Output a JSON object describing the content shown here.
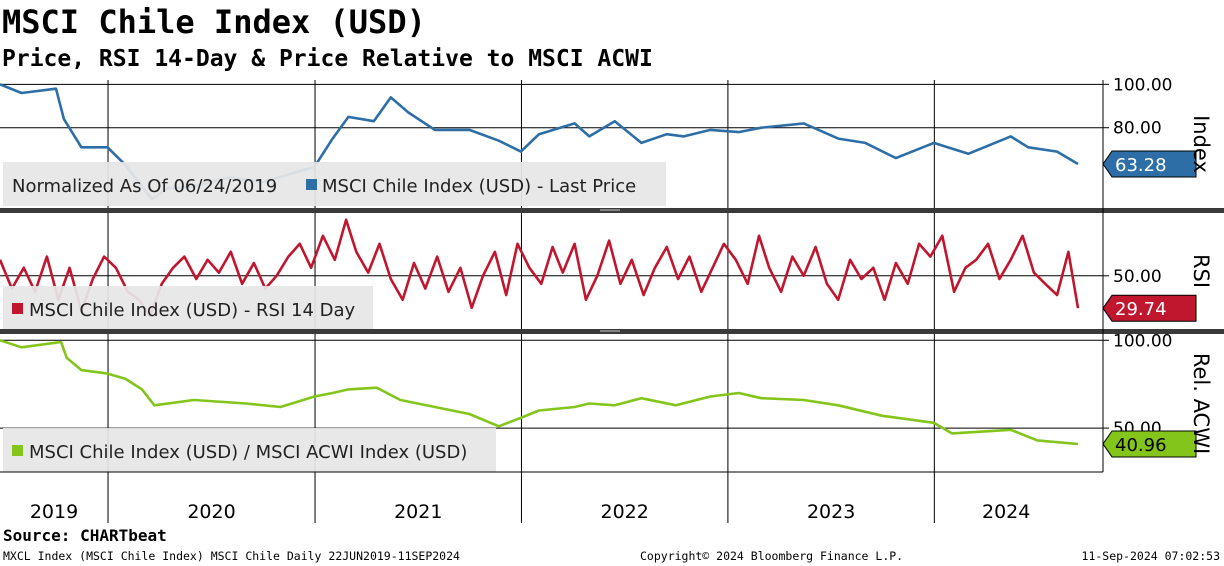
{
  "title": "MSCI Chile Index (USD)",
  "subtitle": "Price, RSI 14-Day & Price Relative to MSCI ACWI",
  "source": "Source: CHARTbeat",
  "footer": {
    "left": "MXCL Index (MSCI Chile Index) MSCI Chile  Daily 22JUN2019-11SEP2024",
    "center": "Copyright© 2024 Bloomberg Finance L.P.",
    "right": "11-Sep-2024 07:02:53"
  },
  "chart_data": [
    {
      "type": "line",
      "panel": "price",
      "axis_title": "Index",
      "ylabel_ticks": [
        "100.00",
        "80.00"
      ],
      "ylim": [
        43,
        102
      ],
      "legend": [
        "Normalized As Of 06/24/2019",
        "MSCI Chile Index (USD) - Last Price"
      ],
      "last_value_label": "63.28",
      "color": "#2e6ea6",
      "x": [
        "2019-06-24",
        "2019-08-01",
        "2019-10-01",
        "2019-10-15",
        "2019-11-15",
        "2019-12-31",
        "2020-01-31",
        "2020-03-19",
        "2020-04-15",
        "2020-06-01",
        "2020-08-01",
        "2020-10-01",
        "2020-12-31",
        "2021-02-01",
        "2021-03-01",
        "2021-04-15",
        "2021-05-15",
        "2021-06-15",
        "2021-08-01",
        "2021-10-01",
        "2021-11-22",
        "2021-12-31",
        "2022-02-01",
        "2022-04-05",
        "2022-05-01",
        "2022-06-15",
        "2022-08-01",
        "2022-09-15",
        "2022-10-15",
        "2022-12-01",
        "2023-01-20",
        "2023-03-01",
        "2023-05-15",
        "2023-07-15",
        "2023-09-01",
        "2023-10-25",
        "2023-12-31",
        "2024-03-01",
        "2024-05-15",
        "2024-06-15",
        "2024-08-05",
        "2024-09-11"
      ],
      "y": [
        100,
        96,
        98,
        84,
        71,
        71,
        63,
        47,
        52,
        53,
        57,
        55,
        62,
        75,
        85,
        83,
        94,
        87,
        79,
        79,
        74,
        69,
        77,
        82,
        76,
        83,
        73,
        77,
        76,
        79,
        78,
        80,
        82,
        75,
        73,
        66,
        73,
        68,
        76,
        71,
        69,
        63.28
      ]
    },
    {
      "type": "line",
      "panel": "rsi",
      "axis_title": "RSI",
      "ylabel_ticks": [
        "50.00"
      ],
      "ylim": [
        18,
        88
      ],
      "legend": [
        "MSCI Chile Index (USD) - RSI 14 Day"
      ],
      "last_value_label": "29.74",
      "color": "#c0172f",
      "x": [
        "2019-06-24",
        "2019-07-15",
        "2019-08-05",
        "2019-08-25",
        "2019-09-15",
        "2019-10-05",
        "2019-10-25",
        "2019-11-15",
        "2019-12-05",
        "2019-12-25",
        "2020-01-15",
        "2020-02-05",
        "2020-02-25",
        "2020-03-15",
        "2020-04-05",
        "2020-04-25",
        "2020-05-15",
        "2020-06-05",
        "2020-06-25",
        "2020-07-15",
        "2020-08-05",
        "2020-08-25",
        "2020-09-15",
        "2020-10-05",
        "2020-10-25",
        "2020-11-15",
        "2020-12-05",
        "2020-12-25",
        "2021-01-15",
        "2021-02-05",
        "2021-02-25",
        "2021-03-15",
        "2021-04-05",
        "2021-04-25",
        "2021-05-15",
        "2021-06-05",
        "2021-06-25",
        "2021-07-15",
        "2021-08-05",
        "2021-08-25",
        "2021-09-15",
        "2021-10-05",
        "2021-10-25",
        "2021-11-15",
        "2021-12-05",
        "2021-12-25",
        "2022-01-15",
        "2022-02-05",
        "2022-02-25",
        "2022-03-15",
        "2022-04-05",
        "2022-04-25",
        "2022-05-15",
        "2022-06-05",
        "2022-06-25",
        "2022-07-15",
        "2022-08-05",
        "2022-08-25",
        "2022-09-15",
        "2022-10-05",
        "2022-10-25",
        "2022-11-15",
        "2022-12-05",
        "2022-12-25",
        "2023-01-15",
        "2023-02-05",
        "2023-02-25",
        "2023-03-15",
        "2023-04-05",
        "2023-04-25",
        "2023-05-15",
        "2023-06-05",
        "2023-06-25",
        "2023-07-15",
        "2023-08-05",
        "2023-08-25",
        "2023-09-15",
        "2023-10-05",
        "2023-10-25",
        "2023-11-15",
        "2023-12-05",
        "2023-12-25",
        "2024-01-15",
        "2024-02-05",
        "2024-02-25",
        "2024-03-15",
        "2024-04-05",
        "2024-04-25",
        "2024-05-15",
        "2024-06-05",
        "2024-06-25",
        "2024-07-15",
        "2024-08-05",
        "2024-08-25",
        "2024-09-11"
      ],
      "y": [
        60,
        42,
        55,
        40,
        62,
        35,
        55,
        28,
        48,
        62,
        55,
        40,
        35,
        25,
        45,
        55,
        62,
        48,
        60,
        52,
        65,
        45,
        58,
        42,
        50,
        62,
        70,
        55,
        75,
        60,
        85,
        65,
        52,
        70,
        48,
        35,
        58,
        42,
        62,
        40,
        55,
        30,
        50,
        65,
        38,
        70,
        55,
        45,
        68,
        52,
        70,
        35,
        50,
        72,
        45,
        60,
        38,
        55,
        68,
        48,
        62,
        40,
        55,
        70,
        60,
        45,
        75,
        55,
        40,
        62,
        50,
        68,
        45,
        35,
        60,
        48,
        55,
        35,
        58,
        45,
        70,
        62,
        75,
        40,
        55,
        60,
        70,
        48,
        60,
        75,
        52,
        45,
        38,
        65,
        29.74
      ]
    },
    {
      "type": "line",
      "panel": "relative",
      "axis_title": "Rel. ACWI",
      "ylabel_ticks": [
        "100.00",
        "50.00"
      ],
      "ylim": [
        25,
        103
      ],
      "legend": [
        "MSCI Chile Index (USD) / MSCI ACWI Index (USD)"
      ],
      "last_value_label": "40.96",
      "color": "#83c51b",
      "x": [
        "2019-06-24",
        "2019-08-01",
        "2019-10-10",
        "2019-10-20",
        "2019-11-15",
        "2019-12-31",
        "2020-02-01",
        "2020-03-01",
        "2020-03-23",
        "2020-06-01",
        "2020-09-01",
        "2020-11-01",
        "2020-12-31",
        "2021-02-01",
        "2021-03-01",
        "2021-04-20",
        "2021-06-01",
        "2021-08-01",
        "2021-10-01",
        "2021-11-22",
        "2022-01-01",
        "2022-02-01",
        "2022-04-05",
        "2022-05-01",
        "2022-06-15",
        "2022-08-01",
        "2022-10-01",
        "2022-12-01",
        "2023-01-20",
        "2023-03-01",
        "2023-05-15",
        "2023-07-15",
        "2023-10-01",
        "2023-12-31",
        "2024-02-01",
        "2024-05-15",
        "2024-07-01",
        "2024-09-11"
      ],
      "y": [
        100,
        96,
        99,
        90,
        83,
        81,
        78,
        72,
        63,
        66,
        64,
        62,
        68,
        70,
        72,
        73,
        66,
        62,
        58,
        51,
        56,
        60,
        62,
        64,
        63,
        67,
        63,
        68,
        70,
        67,
        66,
        63,
        57,
        53,
        47,
        49,
        43,
        40.96
      ]
    }
  ],
  "x_axis": {
    "year_labels": [
      "2019",
      "2020",
      "2021",
      "2022",
      "2023",
      "2024"
    ],
    "range": [
      "2019-06-24",
      "2024-09-11"
    ]
  }
}
